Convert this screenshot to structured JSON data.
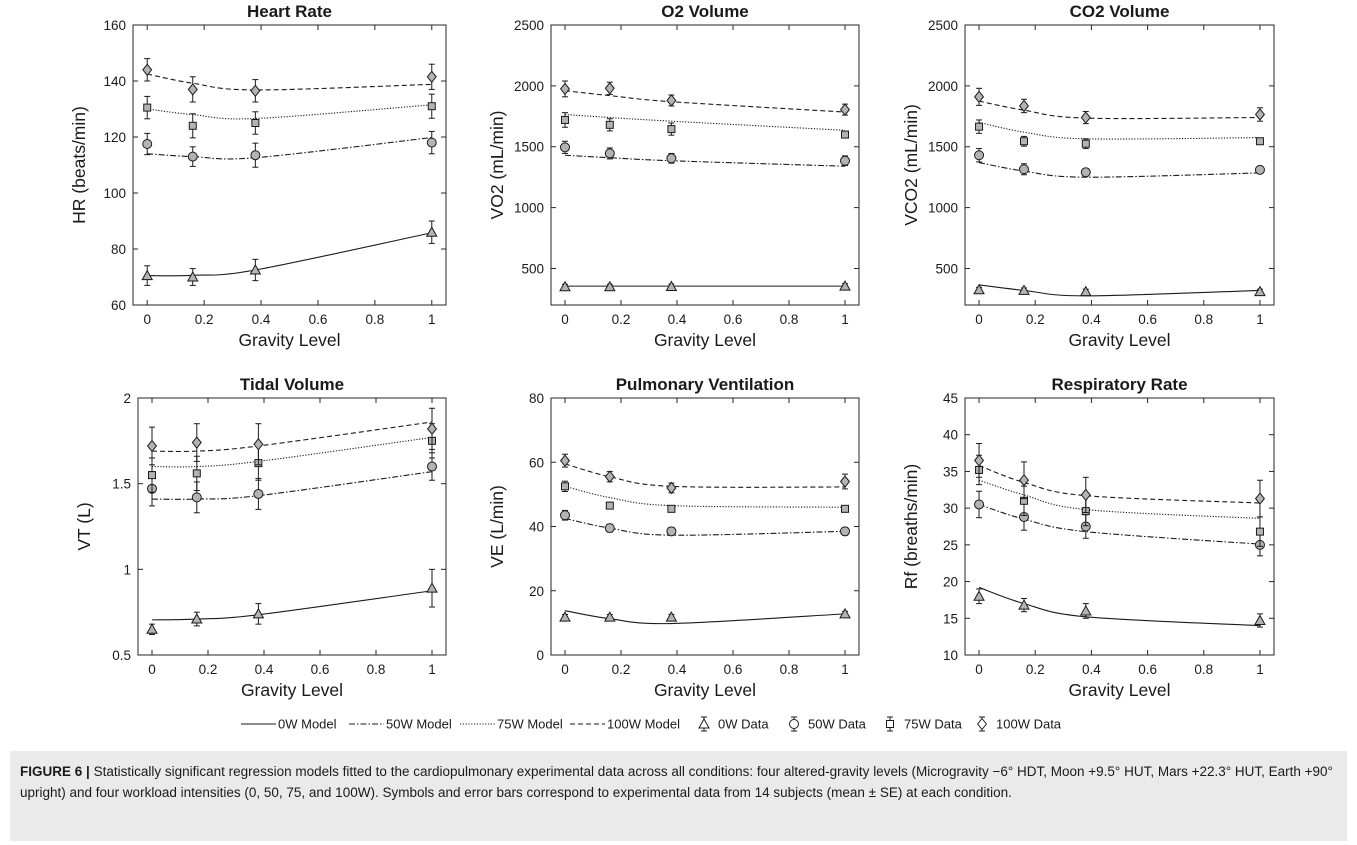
{
  "caption": {
    "label": "FIGURE 6 |",
    "text": "Statistically significant regression models fitted to the cardiopulmonary experimental data across all conditions: four altered-gravity levels (Microgravity −6° HDT, Moon +9.5° HUT, Mars +22.3° HUT, Earth +90° upright) and four workload intensities (0, 50, 75, and 100W). Symbols and error bars correspond to experimental data from 14 subjects (mean ± SE) at each condition."
  },
  "legend": {
    "position": "bottom-center",
    "items": [
      {
        "label": "0W Model",
        "kind": "line",
        "dash": "solid"
      },
      {
        "label": "50W Model",
        "kind": "line",
        "dash": "dashdot"
      },
      {
        "label": "75W Model",
        "kind": "line",
        "dash": "dotted"
      },
      {
        "label": "100W Model",
        "kind": "line",
        "dash": "dashed"
      },
      {
        "label": "0W Data",
        "kind": "marker",
        "marker": "triangle"
      },
      {
        "label": "50W Data",
        "kind": "marker",
        "marker": "circle"
      },
      {
        "label": "75W Data",
        "kind": "marker",
        "marker": "square"
      },
      {
        "label": "100W Data",
        "kind": "marker",
        "marker": "diamond"
      }
    ]
  },
  "colors": {
    "line": "#1a1a1a",
    "marker_fill": "#b3b3b3",
    "axis": "#262626"
  },
  "chart_data": [
    {
      "type": "scatter",
      "title": "Heart Rate",
      "xlabel": "Gravity Level",
      "ylabel": "HR (beats/min)",
      "xlim": [
        -0.05,
        1.05
      ],
      "ylim": [
        60,
        160
      ],
      "xticks": [
        0,
        0.2,
        0.4,
        0.6,
        0.8,
        1
      ],
      "xticklabels": [
        "0",
        "0.2",
        "0.4",
        "0.6",
        "0.8",
        "1"
      ],
      "yticks": [
        60,
        80,
        100,
        120,
        140,
        160
      ],
      "yticklabels": [
        "60",
        "80",
        "100",
        "120",
        "140",
        "160"
      ],
      "x": [
        0,
        0.16,
        0.38,
        1
      ],
      "series": [
        {
          "name": "0W",
          "marker": "triangle",
          "dash": "solid",
          "values": [
            70.5,
            70,
            72.5,
            86
          ],
          "error": [
            3.5,
            3,
            3.8,
            4
          ],
          "model": [
            70.5,
            70.6,
            72.5,
            85.8
          ]
        },
        {
          "name": "50W",
          "marker": "circle",
          "dash": "dashdot",
          "values": [
            117.5,
            113,
            113.5,
            118
          ],
          "error": [
            3.8,
            3.5,
            4.3,
            4
          ],
          "model": [
            114,
            113,
            112.6,
            119.8
          ]
        },
        {
          "name": "75W",
          "marker": "square",
          "dash": "dotted",
          "values": [
            130.5,
            124,
            125,
            131
          ],
          "error": [
            4,
            4.3,
            4,
            4.3
          ],
          "model": [
            130,
            128,
            126.6,
            131.5
          ]
        },
        {
          "name": "100W",
          "marker": "diamond",
          "dash": "dashed",
          "values": [
            144,
            137,
            136.5,
            141.5
          ],
          "error": [
            4,
            4.5,
            4,
            4.5
          ],
          "model": [
            142.5,
            139.2,
            136.8,
            138.8
          ]
        }
      ]
    },
    {
      "type": "scatter",
      "title": "O2 Volume",
      "xlabel": "Gravity Level",
      "ylabel": "VO2 (mL/min)",
      "xlim": [
        -0.05,
        1.05
      ],
      "ylim": [
        200,
        2500
      ],
      "xticks": [
        0,
        0.2,
        0.4,
        0.6,
        0.8,
        1
      ],
      "xticklabels": [
        "0",
        "0.2",
        "0.4",
        "0.6",
        "0.8",
        "1"
      ],
      "yticks": [
        500,
        1000,
        1500,
        2000,
        2500
      ],
      "yticklabels": [
        "500",
        "1000",
        "1500",
        "2000",
        "2500"
      ],
      "x": [
        0,
        0.16,
        0.38,
        1
      ],
      "series": [
        {
          "name": "0W",
          "marker": "triangle",
          "dash": "solid",
          "values": [
            350,
            350,
            352,
            355
          ],
          "error": [
            20,
            20,
            20,
            20
          ],
          "model": [
            355,
            355,
            355,
            355
          ]
        },
        {
          "name": "50W",
          "marker": "circle",
          "dash": "dashdot",
          "values": [
            1495,
            1445,
            1405,
            1385
          ],
          "error": [
            50,
            45,
            40,
            40
          ],
          "model": [
            1430,
            1410,
            1385,
            1340
          ]
        },
        {
          "name": "75W",
          "marker": "square",
          "dash": "dotted",
          "values": [
            1720,
            1680,
            1645,
            1600
          ],
          "error": [
            60,
            50,
            50,
            25
          ],
          "model": [
            1765,
            1740,
            1710,
            1635
          ]
        },
        {
          "name": "100W",
          "marker": "diamond",
          "dash": "dashed",
          "values": [
            1975,
            1980,
            1880,
            1805
          ],
          "error": [
            65,
            50,
            45,
            45
          ],
          "model": [
            1960,
            1920,
            1870,
            1785
          ]
        }
      ]
    },
    {
      "type": "scatter",
      "title": "CO2 Volume",
      "xlabel": "Gravity Level",
      "ylabel": "VCO2 (mL/min)",
      "xlim": [
        -0.05,
        1.05
      ],
      "ylim": [
        200,
        2500
      ],
      "xticks": [
        0,
        0.2,
        0.4,
        0.6,
        0.8,
        1
      ],
      "xticklabels": [
        "0",
        "0.2",
        "0.4",
        "0.6",
        "0.8",
        "1"
      ],
      "yticks": [
        500,
        1000,
        1500,
        2000,
        2500
      ],
      "yticklabels": [
        "500",
        "1000",
        "1500",
        "2000",
        "2500"
      ],
      "x": [
        0,
        0.16,
        0.38,
        1
      ],
      "series": [
        {
          "name": "0W",
          "marker": "triangle",
          "dash": "solid",
          "values": [
            325,
            320,
            310,
            310
          ],
          "error": [
            20,
            20,
            20,
            20
          ],
          "model": [
            365,
            320,
            275,
            320
          ]
        },
        {
          "name": "50W",
          "marker": "circle",
          "dash": "dashdot",
          "values": [
            1430,
            1315,
            1290,
            1310
          ],
          "error": [
            55,
            45,
            30,
            30
          ],
          "model": [
            1370,
            1300,
            1250,
            1285
          ]
        },
        {
          "name": "75W",
          "marker": "square",
          "dash": "dotted",
          "values": [
            1665,
            1545,
            1525,
            1545
          ],
          "error": [
            55,
            40,
            40,
            25
          ],
          "model": [
            1700,
            1620,
            1565,
            1575
          ]
        },
        {
          "name": "100W",
          "marker": "diamond",
          "dash": "dashed",
          "values": [
            1910,
            1835,
            1740,
            1765
          ],
          "error": [
            70,
            55,
            50,
            55
          ],
          "model": [
            1875,
            1800,
            1735,
            1740
          ]
        }
      ]
    },
    {
      "type": "scatter",
      "title": "Tidal Volume",
      "xlabel": "Gravity Level",
      "ylabel": "VT (L)",
      "xlim": [
        -0.05,
        1.05
      ],
      "ylim": [
        0.5,
        2
      ],
      "xticks": [
        0,
        0.2,
        0.4,
        0.6,
        0.8,
        1
      ],
      "xticklabels": [
        "0",
        "0.2",
        "0.4",
        "0.6",
        "0.8",
        "1"
      ],
      "yticks": [
        0.5,
        1,
        1.5,
        2
      ],
      "yticklabels": [
        "0.5",
        "1",
        "1.5",
        "2"
      ],
      "x": [
        0,
        0.16,
        0.38,
        1
      ],
      "series": [
        {
          "name": "0W",
          "marker": "triangle",
          "dash": "solid",
          "values": [
            0.65,
            0.71,
            0.74,
            0.89
          ],
          "error": [
            0.03,
            0.04,
            0.06,
            0.11
          ],
          "model": [
            0.705,
            0.71,
            0.735,
            0.875
          ]
        },
        {
          "name": "50W",
          "marker": "circle",
          "dash": "dashdot",
          "values": [
            1.47,
            1.42,
            1.44,
            1.6
          ],
          "error": [
            0.1,
            0.09,
            0.09,
            0.08
          ],
          "model": [
            1.41,
            1.41,
            1.43,
            1.57
          ]
        },
        {
          "name": "75W",
          "marker": "square",
          "dash": "dotted",
          "values": [
            1.55,
            1.56,
            1.62,
            1.75
          ],
          "error": [
            0.1,
            0.1,
            0.1,
            0.1
          ],
          "model": [
            1.6,
            1.6,
            1.63,
            1.77
          ]
        },
        {
          "name": "100W",
          "marker": "diamond",
          "dash": "dashed",
          "values": [
            1.72,
            1.74,
            1.73,
            1.82
          ],
          "error": [
            0.11,
            0.11,
            0.12,
            0.12
          ],
          "model": [
            1.69,
            1.69,
            1.72,
            1.86
          ]
        }
      ]
    },
    {
      "type": "scatter",
      "title": "Pulmonary Ventilation",
      "xlabel": "Gravity Level",
      "ylabel": "VE (L/min)",
      "xlim": [
        -0.05,
        1.05
      ],
      "ylim": [
        0,
        80
      ],
      "xticks": [
        0,
        0.2,
        0.4,
        0.6,
        0.8,
        1
      ],
      "xticklabels": [
        "0",
        "0.2",
        "0.4",
        "0.6",
        "0.8",
        "1"
      ],
      "yticks": [
        0,
        20,
        40,
        60,
        80
      ],
      "yticklabels": [
        "0",
        "20",
        "40",
        "60",
        "80"
      ],
      "x": [
        0,
        0.16,
        0.38,
        1
      ],
      "series": [
        {
          "name": "0W",
          "marker": "triangle",
          "dash": "solid",
          "values": [
            11.8,
            11.8,
            11.8,
            12.8
          ],
          "error": [
            0.8,
            0.8,
            0.8,
            0.8
          ],
          "model": [
            13.8,
            11.3,
            9.8,
            12.8
          ]
        },
        {
          "name": "50W",
          "marker": "circle",
          "dash": "dashdot",
          "values": [
            43.5,
            39.5,
            38.5,
            38.5
          ],
          "error": [
            1.5,
            1.2,
            1.2,
            1.2
          ],
          "model": [
            42.5,
            39.5,
            37.3,
            38.5
          ]
        },
        {
          "name": "75W",
          "marker": "square",
          "dash": "dotted",
          "values": [
            52.5,
            46.5,
            45.5,
            45.5
          ],
          "error": [
            1.6,
            1,
            1,
            1
          ],
          "model": [
            52.5,
            49,
            46.5,
            46
          ]
        },
        {
          "name": "100W",
          "marker": "diamond",
          "dash": "dashed",
          "values": [
            60.5,
            55.5,
            52,
            54
          ],
          "error": [
            2,
            1.6,
            1.5,
            2.3
          ],
          "model": [
            59.5,
            55.5,
            52.5,
            52.3
          ]
        }
      ]
    },
    {
      "type": "scatter",
      "title": "Respiratory Rate",
      "xlabel": "Gravity Level",
      "ylabel": "Rf (breaths/min)",
      "xlim": [
        -0.05,
        1.05
      ],
      "ylim": [
        10,
        45
      ],
      "xticks": [
        0,
        0.2,
        0.4,
        0.6,
        0.8,
        1
      ],
      "xticklabels": [
        "0",
        "0.2",
        "0.4",
        "0.6",
        "0.8",
        "1"
      ],
      "yticks": [
        10,
        15,
        20,
        25,
        30,
        35,
        40,
        45
      ],
      "yticklabels": [
        "10",
        "15",
        "20",
        "25",
        "30",
        "35",
        "40",
        "45"
      ],
      "x": [
        0,
        0.16,
        0.38,
        1
      ],
      "series": [
        {
          "name": "0W",
          "marker": "triangle",
          "dash": "solid",
          "values": [
            18,
            16.8,
            16,
            14.7
          ],
          "error": [
            1,
            0.9,
            1,
            0.9
          ],
          "model": [
            19.2,
            17,
            15.2,
            14
          ]
        },
        {
          "name": "50W",
          "marker": "circle",
          "dash": "dashdot",
          "values": [
            30.5,
            28.8,
            27.5,
            25
          ],
          "error": [
            1.8,
            1.8,
            1.6,
            1.5
          ],
          "model": [
            30.5,
            28.5,
            26.8,
            25.1
          ]
        },
        {
          "name": "75W",
          "marker": "square",
          "dash": "dotted",
          "values": [
            35.2,
            31,
            29.6,
            26.8
          ],
          "error": [
            2,
            2,
            2,
            2
          ],
          "model": [
            33.8,
            31.8,
            29.8,
            28.6
          ]
        },
        {
          "name": "100W",
          "marker": "diamond",
          "dash": "dashed",
          "values": [
            36.5,
            33.8,
            31.8,
            31.3
          ],
          "error": [
            2.3,
            2.5,
            2.4,
            2.5
          ],
          "model": [
            35.8,
            33.5,
            31.7,
            30.7
          ]
        }
      ]
    }
  ]
}
